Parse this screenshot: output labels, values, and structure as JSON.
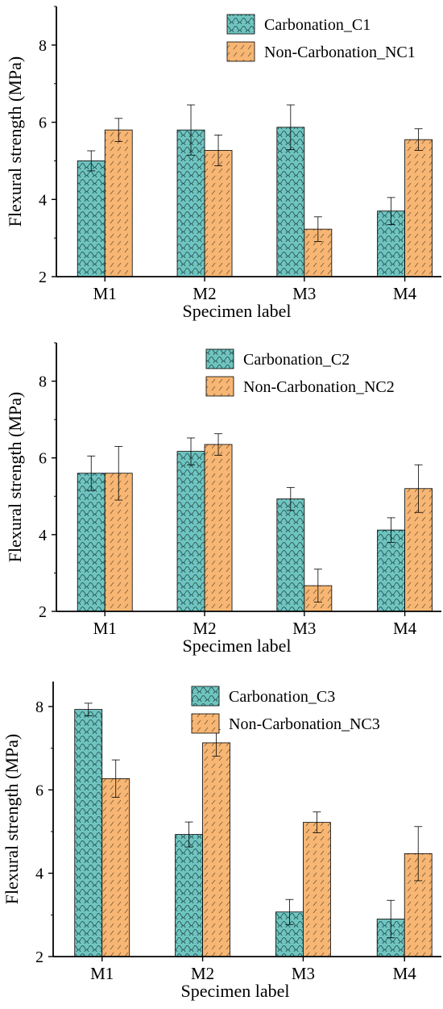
{
  "colors": {
    "carbonation": "#6fc4c0",
    "non_carbonation": "#f7b673",
    "axis": "#000000"
  },
  "chart_data": [
    {
      "type": "bar",
      "categories": [
        "M1",
        "M2",
        "M3",
        "M4"
      ],
      "xlabel": "Specimen label",
      "ylabel": "Flexural strength (MPa)",
      "ylim": [
        2,
        9
      ],
      "yticks": [
        2,
        4,
        6,
        8
      ],
      "legend": "top-right",
      "series": [
        {
          "name": "Carbonation_C1",
          "values": [
            5.0,
            5.8,
            5.87,
            3.7
          ],
          "errors": [
            0.26,
            0.65,
            0.58,
            0.35
          ]
        },
        {
          "name": "Non-Carbonation_NC1",
          "values": [
            5.8,
            5.27,
            3.23,
            5.55
          ],
          "errors": [
            0.3,
            0.4,
            0.32,
            0.28
          ]
        }
      ]
    },
    {
      "type": "bar",
      "categories": [
        "M1",
        "M2",
        "M3",
        "M4"
      ],
      "xlabel": "Specimen label",
      "ylabel": "Flexural strength (MPa)",
      "ylim": [
        2,
        9
      ],
      "yticks": [
        2,
        4,
        6,
        8
      ],
      "legend": "top-right",
      "series": [
        {
          "name": "Carbonation_C2",
          "values": [
            5.6,
            6.17,
            4.93,
            4.12
          ],
          "errors": [
            0.45,
            0.35,
            0.3,
            0.32
          ]
        },
        {
          "name": "Non-Carbonation_NC2",
          "values": [
            5.6,
            6.35,
            2.67,
            5.2
          ],
          "errors": [
            0.7,
            0.28,
            0.43,
            0.62
          ]
        }
      ]
    },
    {
      "type": "bar",
      "categories": [
        "M1",
        "M2",
        "M3",
        "M4"
      ],
      "xlabel": "Specimen label",
      "ylabel": "Flexural strength (MPa)",
      "ylim": [
        2,
        8.6
      ],
      "yticks": [
        2,
        4,
        6,
        8
      ],
      "legend": "top-right",
      "series": [
        {
          "name": "Carbonation_C3",
          "values": [
            7.93,
            4.93,
            3.07,
            2.9
          ],
          "errors": [
            0.15,
            0.3,
            0.3,
            0.45
          ]
        },
        {
          "name": "Non-Carbonation_NC3",
          "values": [
            6.27,
            7.13,
            5.22,
            4.47
          ],
          "errors": [
            0.45,
            0.32,
            0.25,
            0.65
          ]
        }
      ]
    }
  ]
}
